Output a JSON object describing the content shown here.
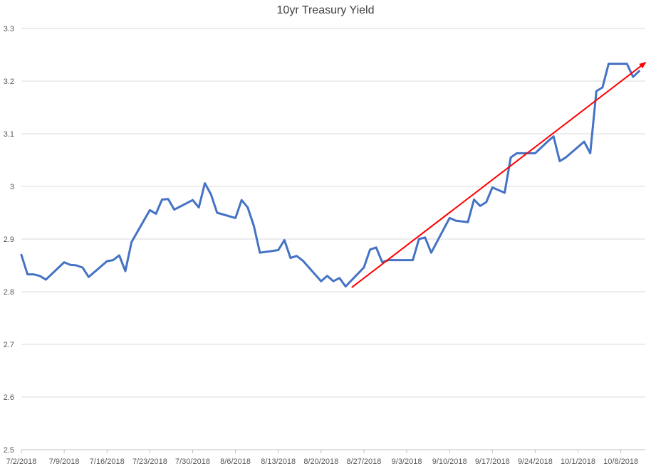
{
  "chart_data": {
    "type": "line",
    "title": "10yr Treasury Yield",
    "xlabel": "",
    "ylabel": "",
    "ylim": [
      2.5,
      3.3
    ],
    "y_ticks": [
      "2.5",
      "2.6",
      "2.7",
      "2.8",
      "2.9",
      "3",
      "3.1",
      "3.2",
      "3.3"
    ],
    "y_tick_values": [
      2.5,
      2.6,
      2.7,
      2.8,
      2.9,
      3.0,
      3.1,
      3.2,
      3.3
    ],
    "xlim": [
      "2018-07-02",
      "2018-10-12"
    ],
    "x_ticks": [
      "7/2/2018",
      "7/9/2018",
      "7/16/2018",
      "7/23/2018",
      "7/30/2018",
      "8/6/2018",
      "8/13/2018",
      "8/20/2018",
      "8/27/2018",
      "9/3/2018",
      "9/10/2018",
      "9/17/2018",
      "9/24/2018",
      "10/1/2018",
      "10/8/2018"
    ],
    "x_tick_dates": [
      "2018-07-02",
      "2018-07-09",
      "2018-07-16",
      "2018-07-23",
      "2018-07-30",
      "2018-08-06",
      "2018-08-13",
      "2018-08-20",
      "2018-08-27",
      "2018-09-03",
      "2018-09-10",
      "2018-09-17",
      "2018-09-24",
      "2018-10-01",
      "2018-10-08"
    ],
    "grid": true,
    "legend": "none",
    "series": [
      {
        "color": "#4472c4",
        "points": [
          [
            "2018-07-02",
            2.87
          ],
          [
            "2018-07-03",
            2.833
          ],
          [
            "2018-07-04",
            2.833
          ],
          [
            "2018-07-05",
            2.83
          ],
          [
            "2018-07-06",
            2.823
          ],
          [
            "2018-07-09",
            2.856
          ],
          [
            "2018-07-10",
            2.851
          ],
          [
            "2018-07-11",
            2.85
          ],
          [
            "2018-07-12",
            2.846
          ],
          [
            "2018-07-13",
            2.828
          ],
          [
            "2018-07-16",
            2.858
          ],
          [
            "2018-07-17",
            2.86
          ],
          [
            "2018-07-18",
            2.869
          ],
          [
            "2018-07-19",
            2.839
          ],
          [
            "2018-07-20",
            2.894
          ],
          [
            "2018-07-23",
            2.955
          ],
          [
            "2018-07-24",
            2.948
          ],
          [
            "2018-07-25",
            2.975
          ],
          [
            "2018-07-26",
            2.976
          ],
          [
            "2018-07-27",
            2.956
          ],
          [
            "2018-07-30",
            2.974
          ],
          [
            "2018-07-31",
            2.96
          ],
          [
            "2018-08-01",
            3.006
          ],
          [
            "2018-08-02",
            2.985
          ],
          [
            "2018-08-03",
            2.95
          ],
          [
            "2018-08-06",
            2.94
          ],
          [
            "2018-08-07",
            2.974
          ],
          [
            "2018-08-08",
            2.96
          ],
          [
            "2018-08-09",
            2.925
          ],
          [
            "2018-08-10",
            2.874
          ],
          [
            "2018-08-13",
            2.879
          ],
          [
            "2018-08-14",
            2.898
          ],
          [
            "2018-08-15",
            2.864
          ],
          [
            "2018-08-16",
            2.868
          ],
          [
            "2018-08-17",
            2.859
          ],
          [
            "2018-08-20",
            2.82
          ],
          [
            "2018-08-21",
            2.83
          ],
          [
            "2018-08-22",
            2.82
          ],
          [
            "2018-08-23",
            2.826
          ],
          [
            "2018-08-24",
            2.81
          ],
          [
            "2018-08-27",
            2.846
          ],
          [
            "2018-08-28",
            2.88
          ],
          [
            "2018-08-29",
            2.884
          ],
          [
            "2018-08-30",
            2.856
          ],
          [
            "2018-08-31",
            2.86
          ],
          [
            "2018-09-04",
            2.86
          ],
          [
            "2018-09-05",
            2.9
          ],
          [
            "2018-09-06",
            2.903
          ],
          [
            "2018-09-07",
            2.874
          ],
          [
            "2018-09-10",
            2.94
          ],
          [
            "2018-09-11",
            2.935
          ],
          [
            "2018-09-13",
            2.932
          ],
          [
            "2018-09-14",
            2.975
          ],
          [
            "2018-09-15",
            2.963
          ],
          [
            "2018-09-16",
            2.97
          ],
          [
            "2018-09-17",
            2.998
          ],
          [
            "2018-09-19",
            2.988
          ],
          [
            "2018-09-20",
            3.055
          ],
          [
            "2018-09-21",
            3.063
          ],
          [
            "2018-09-24",
            3.063
          ],
          [
            "2018-09-26",
            3.085
          ],
          [
            "2018-09-27",
            3.095
          ],
          [
            "2018-09-28",
            3.048
          ],
          [
            "2018-09-29",
            3.055
          ],
          [
            "2018-10-02",
            3.085
          ],
          [
            "2018-10-03",
            3.063
          ],
          [
            "2018-10-04",
            3.181
          ],
          [
            "2018-10-05",
            3.188
          ],
          [
            "2018-10-06",
            3.233
          ],
          [
            "2018-10-09",
            3.233
          ],
          [
            "2018-10-10",
            3.208
          ],
          [
            "2018-10-11",
            3.219
          ]
        ]
      }
    ],
    "annotations": [
      {
        "type": "arrow",
        "color": "#ff0000",
        "from": [
          "2018-08-25",
          2.808
        ],
        "to": [
          "2018-10-12",
          3.235
        ]
      }
    ]
  }
}
